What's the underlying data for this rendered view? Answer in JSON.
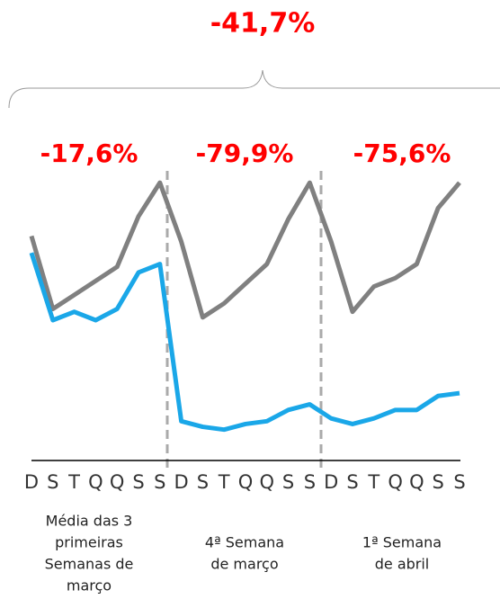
{
  "chart_data": {
    "type": "line",
    "title": "-41,7%",
    "categories": [
      "D",
      "S",
      "T",
      "Q",
      "Q",
      "S",
      "S",
      "D",
      "S",
      "T",
      "Q",
      "Q",
      "S",
      "S",
      "D",
      "S",
      "T",
      "Q",
      "Q",
      "S",
      "S"
    ],
    "series": [
      {
        "color": "#808080",
        "values": [
          80,
          54,
          59,
          64,
          69,
          87,
          99,
          78,
          51,
          56,
          63,
          70,
          86,
          99,
          78,
          53,
          62,
          65,
          70,
          90,
          99
        ]
      },
      {
        "color": "#1aa7e8",
        "values": [
          74,
          50,
          53,
          50,
          54,
          67,
          70,
          14,
          12,
          11,
          13,
          14,
          18,
          20,
          15,
          13,
          15,
          18,
          18,
          23,
          24
        ]
      }
    ],
    "ylim": [
      0,
      100
    ],
    "groups": [
      {
        "change": "-17,6%",
        "label_lines": [
          "Média das 3",
          "primeiras",
          "Semanas de",
          "março"
        ]
      },
      {
        "change": "-79,9%",
        "label_lines": [
          "4ª Semana",
          "de março"
        ]
      },
      {
        "change": "-75,6%",
        "label_lines": [
          "1ª Semana",
          "de abril"
        ]
      }
    ]
  }
}
